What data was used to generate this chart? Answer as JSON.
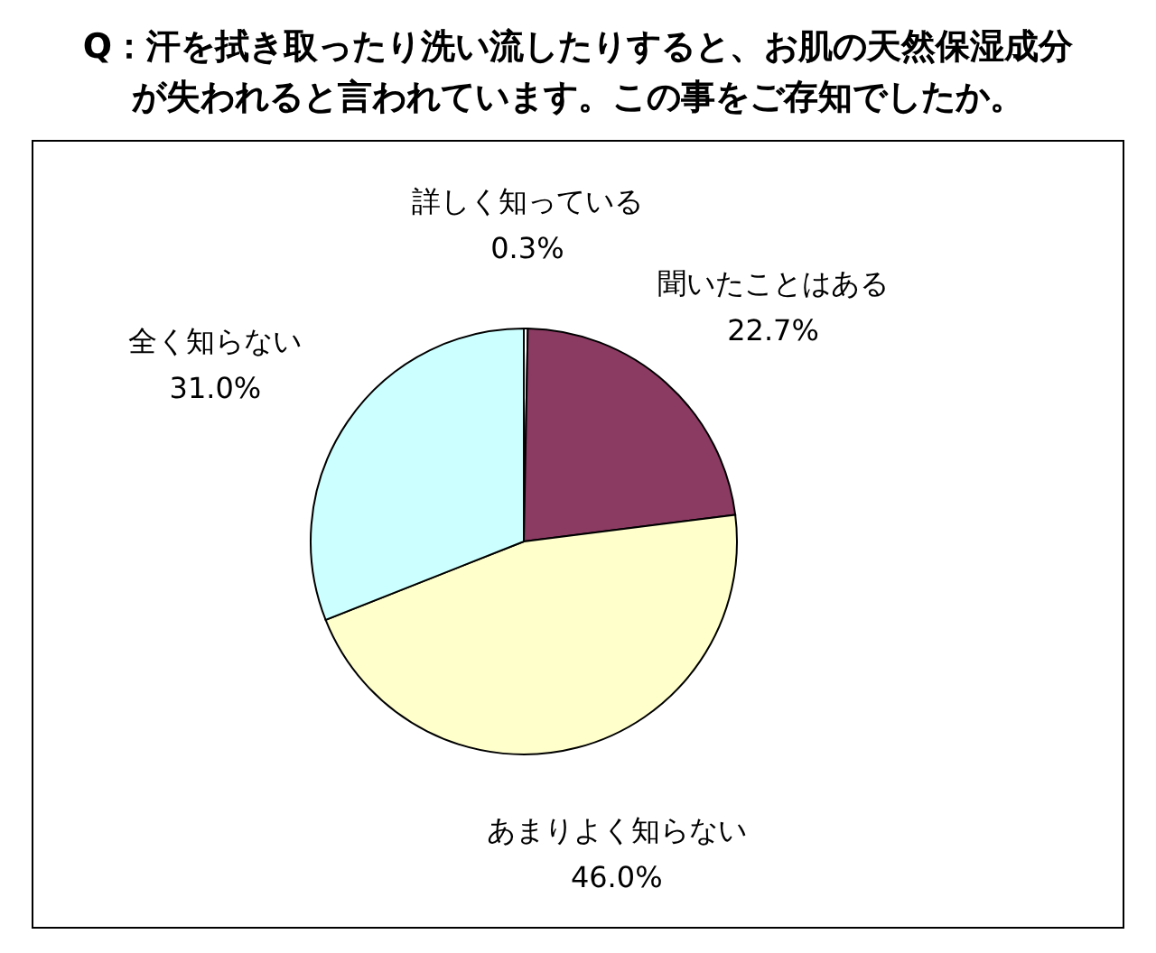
{
  "chart_data": {
    "type": "pie",
    "title": "Q：汗を拭き取ったり洗い流したりすると、お肌の天然保湿成分が失われると言われています。この事をご存知でしたか。",
    "categories": [
      "詳しく知っている",
      "聞いたことはある",
      "あまりよく知らない",
      "全く知らない"
    ],
    "values": [
      0.3,
      22.7,
      46.0,
      31.0
    ],
    "colors": [
      "#ffffff",
      "#8b3a62",
      "#ffffcc",
      "#ccffff"
    ],
    "value_labels": [
      "0.3%",
      "22.7%",
      "46.0%",
      "31.0%"
    ]
  }
}
